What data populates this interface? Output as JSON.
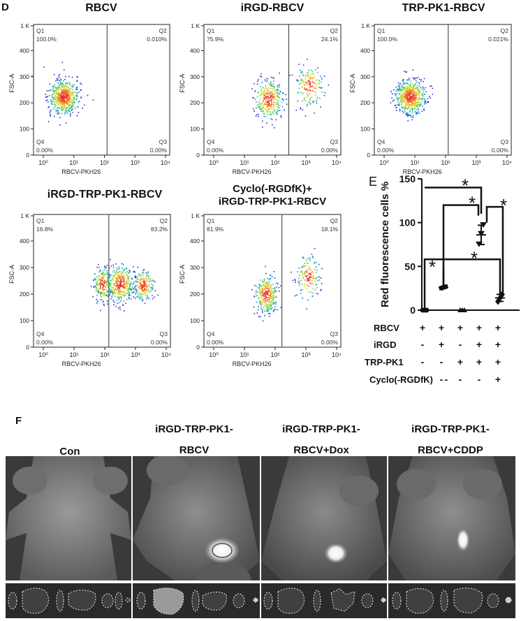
{
  "panel_d_letter": "D",
  "panel_e_letter": "E",
  "panel_f_letter": "F",
  "flow_plots": [
    {
      "title": "RBCV",
      "q1": "Q1\n100.0%",
      "q2": "Q2\n0.010%",
      "q3": "Q3\n0.00%",
      "q4": "Q4\n0.00%",
      "ylabel": "FSC-A",
      "xlabel": "RBCV-PKH26"
    },
    {
      "title": "iRGD-RBCV",
      "q1": "Q1\n75.9%",
      "q2": "Q2\n24.1%",
      "q3": "Q3\n0.00%",
      "q4": "Q4\n0.00%",
      "ylabel": "FSC-A",
      "xlabel": "RBCV-PKH26"
    },
    {
      "title": "TRP-PK1-RBCV",
      "q1": "Q1\n100.0%",
      "q2": "Q2\n0.021%",
      "q3": "Q3\n0.00%",
      "q4": "Q4\n0.00%",
      "ylabel": "FSC-A",
      "xlabel": "RBCV-PKH26"
    },
    {
      "title": "iRGD-TRP-PK1-RBCV",
      "q1": "Q1\n16.8%",
      "q2": "Q2\n83.2%",
      "q3": "Q3\n0.00%",
      "q4": "Q4\n0.00%",
      "ylabel": "FSC-A",
      "xlabel": "RBCV-PKH26"
    },
    {
      "title": "Cyclo(-RGDfK)+\niRGD-TRP-PK1-RBCV",
      "q1": "Q1\n81.9%",
      "q2": "Q2\n18.1%",
      "q3": "Q3\n0.00%",
      "q4": "Q4\n0.00%",
      "ylabel": "FSC-A",
      "xlabel": "RBCV-PKH26"
    }
  ],
  "flow_axis": {
    "y_ticks": [
      "1 K",
      "400",
      "300",
      "200",
      "100",
      "0"
    ],
    "x_ticks": [
      "10⁰",
      "10¹",
      "10²",
      "10³",
      "10⁴"
    ]
  },
  "chart_data": {
    "type": "scatter",
    "ylabel": "Red fluorescence cells %",
    "ylim": [
      0,
      150
    ],
    "y_ticks": [
      "150",
      "100",
      "50",
      "0"
    ],
    "groups": [
      {
        "values": [
          0,
          0,
          0
        ],
        "mean": 0,
        "sd": 0,
        "marker": "circle"
      },
      {
        "values": [
          25,
          26,
          27
        ],
        "mean": 26,
        "sd": 1,
        "marker": "square"
      },
      {
        "values": [
          0,
          0,
          0
        ],
        "mean": 0,
        "sd": 0,
        "marker": "triangle-up"
      },
      {
        "values": [
          76,
          88,
          98
        ],
        "mean": 86,
        "sd": 11,
        "marker": "triangle-down"
      },
      {
        "values": [
          10,
          14,
          18
        ],
        "mean": 14,
        "sd": 4,
        "marker": "diamond"
      }
    ],
    "significance": "*"
  },
  "condition_table": {
    "rows": [
      {
        "label": "RBCV",
        "values": [
          "+",
          "+",
          "+",
          "+",
          "+"
        ]
      },
      {
        "label": "iRGD",
        "values": [
          "-",
          "+",
          "-",
          "+",
          "+"
        ]
      },
      {
        "label": "TRP-PK1",
        "values": [
          "-",
          "-",
          "+",
          "+",
          "+"
        ]
      },
      {
        "label": "Cyclo(-RGDfK)",
        "values": [
          "-",
          "-",
          "-",
          "-",
          "+"
        ]
      }
    ]
  },
  "mice": [
    {
      "label": "Con"
    },
    {
      "label": "iRGD-TRP-PK1-\nRBCV"
    },
    {
      "label": "iRGD-TRP-PK1-\nRBCV+Dox"
    },
    {
      "label": "iRGD-TRP-PK1-\nRBCV+CDDP"
    }
  ]
}
